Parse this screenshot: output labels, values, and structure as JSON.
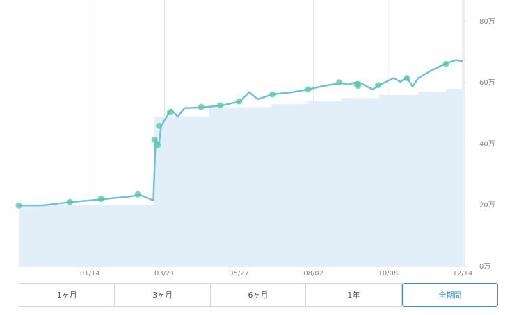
{
  "chart_data": {
    "type": "line",
    "xlim": [
      "11/11",
      "12/14"
    ],
    "xticks": [
      "01/14",
      "03/21",
      "05/27",
      "08/02",
      "10/08",
      "12/14"
    ],
    "ylim": [
      0,
      87
    ],
    "yticks": [
      {
        "value": 0,
        "label": "0万"
      },
      {
        "value": 20,
        "label": "20万"
      },
      {
        "value": 40,
        "label": "40万"
      },
      {
        "value": 60,
        "label": "60万"
      },
      {
        "value": 80,
        "label": "80万"
      }
    ],
    "grid": true,
    "series": [
      {
        "kind": "area",
        "color": "#e3eff8",
        "x": [
          "11/11",
          "03/12",
          "04/30",
          "06/25",
          "07/27",
          "08/27",
          "09/30",
          "11/04",
          "11/29",
          "12/14"
        ],
        "values": [
          20,
          49,
          52,
          53,
          54,
          55,
          56,
          57,
          58,
          58
        ]
      },
      {
        "kind": "line",
        "color": "#72bde6",
        "x": [
          "11/11",
          "12/02",
          "12/27",
          "01/24",
          "02/21",
          "02/27",
          "03/10",
          "03/11",
          "03/13",
          "03/16",
          "03/18",
          "03/23",
          "03/27",
          "04/02",
          "04/08",
          "04/24",
          "05/12",
          "05/28",
          "06/05",
          "06/13",
          "06/26",
          "07/14",
          "07/28",
          "08/08",
          "08/26",
          "09/02",
          "09/11",
          "09/24",
          "09/30",
          "10/13",
          "10/19",
          "10/25",
          "10/30",
          "11/04",
          "11/16",
          "11/29",
          "12/08",
          "12/14"
        ],
        "values": [
          19.9,
          19.9,
          21.0,
          21.9,
          22.9,
          23.5,
          21.7,
          21.7,
          41.4,
          39.8,
          45.9,
          48.9,
          51.2,
          48.9,
          51.7,
          51.9,
          52.6,
          53.9,
          56.9,
          54.6,
          56.2,
          56.9,
          57.8,
          58.7,
          59.9,
          59.4,
          60.3,
          57.8,
          59.2,
          61.5,
          60.3,
          61.7,
          58.7,
          61.5,
          64.0,
          66.3,
          67.4,
          67.0
        ]
      },
      {
        "kind": "points",
        "color": "#4ccb9a",
        "x": [
          "11/11",
          "12/27",
          "01/24",
          "02/26",
          "03/12",
          "03/15",
          "03/16",
          "03/26",
          "04/23",
          "05/10",
          "05/27",
          "06/26",
          "07/28",
          "08/25",
          "09/10",
          "09/11",
          "09/29",
          "10/25",
          "11/29"
        ],
        "values": [
          19.9,
          21.0,
          22.1,
          23.5,
          41.4,
          39.6,
          45.9,
          50.3,
          52.1,
          52.6,
          53.9,
          56.2,
          57.8,
          60.1,
          59.4,
          59.0,
          59.2,
          61.5,
          66.1
        ]
      }
    ]
  },
  "controls": {
    "buttons": [
      "1ヶ月",
      "3ヶ月",
      "6ヶ月",
      "1年",
      "全期間"
    ],
    "selected_index": 4
  }
}
